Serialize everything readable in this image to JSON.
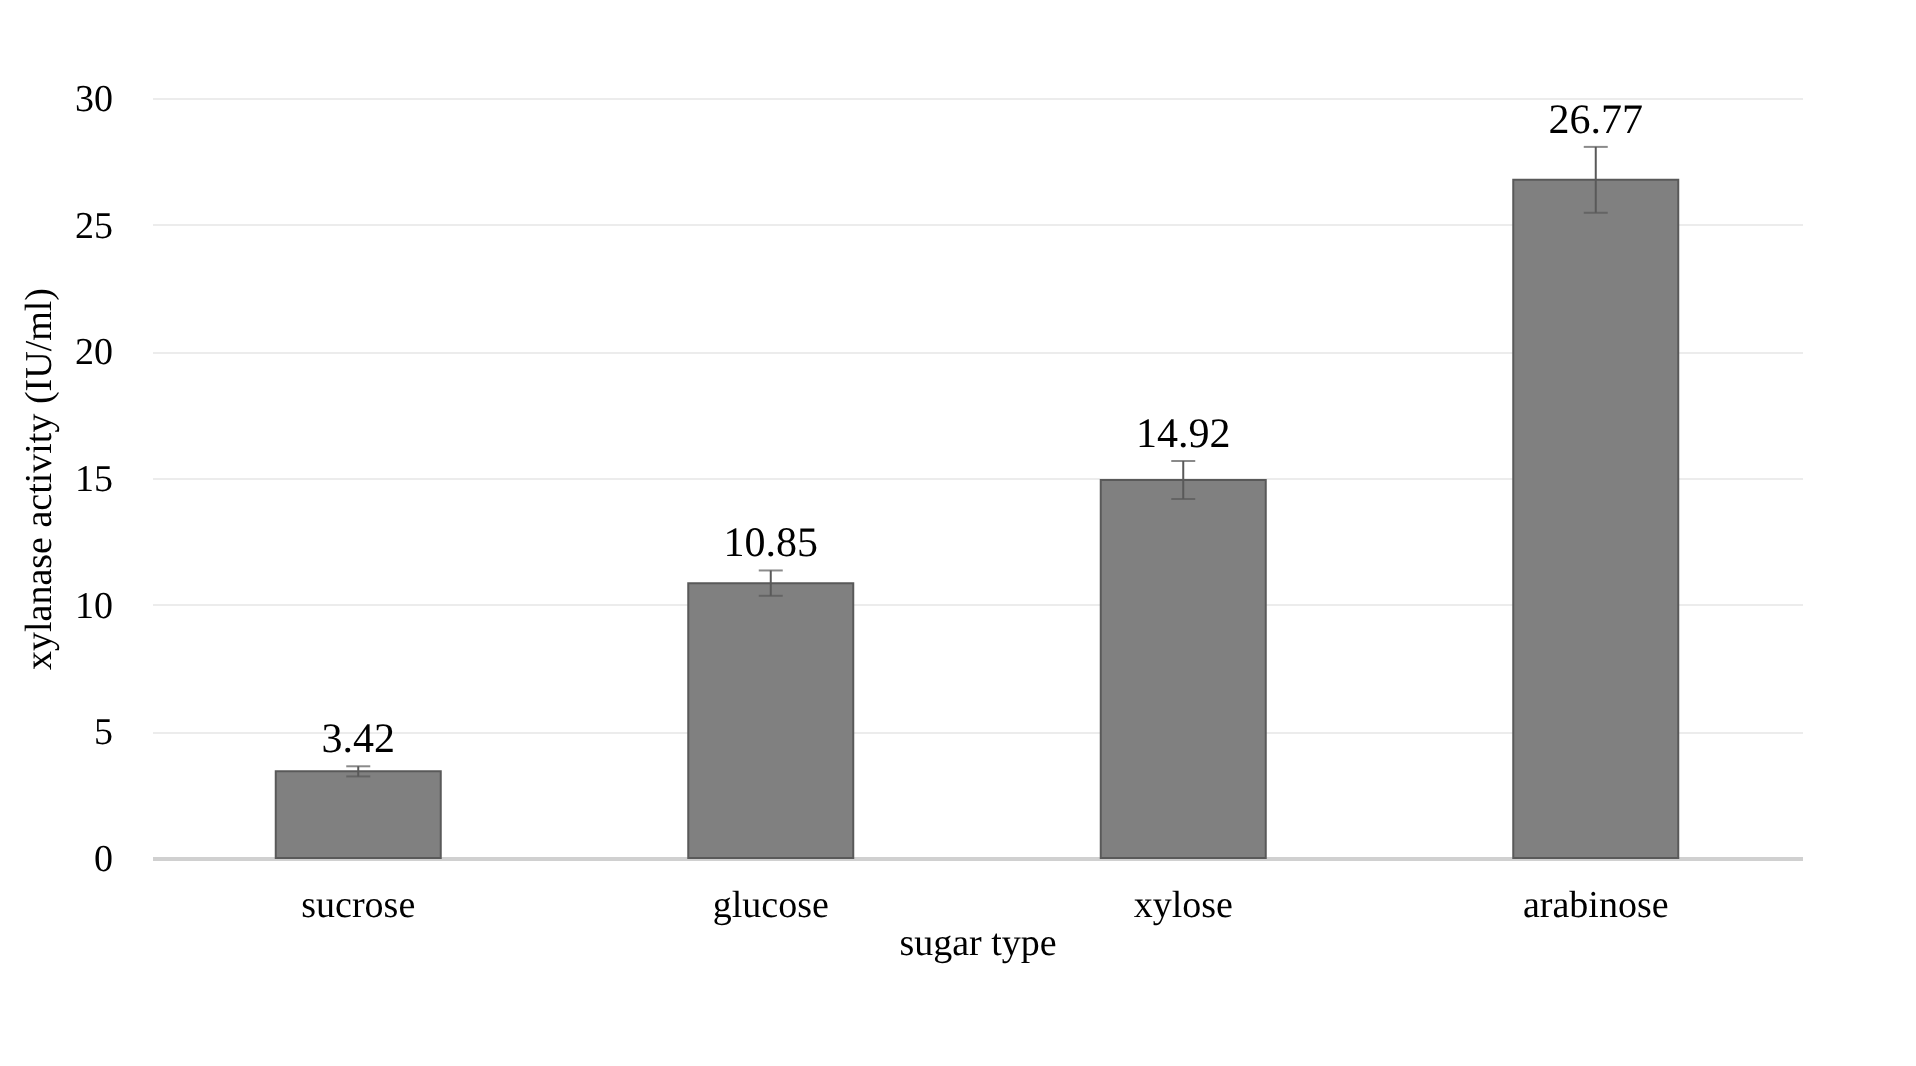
{
  "chart_data": {
    "type": "bar",
    "xlabel": "sugar type",
    "ylabel": "xylanase activity (IU/ml)",
    "categories": [
      "sucrose",
      "glucose",
      "xylose",
      "arabinose"
    ],
    "values": [
      3.42,
      10.85,
      14.92,
      26.77
    ],
    "errors": [
      0.2,
      0.5,
      0.75,
      1.3
    ],
    "color": "#808080",
    "ylim": [
      0,
      30
    ],
    "yticks": [
      0,
      5,
      10,
      15,
      20,
      25,
      30
    ],
    "grid": "y",
    "data_labels": true
  }
}
